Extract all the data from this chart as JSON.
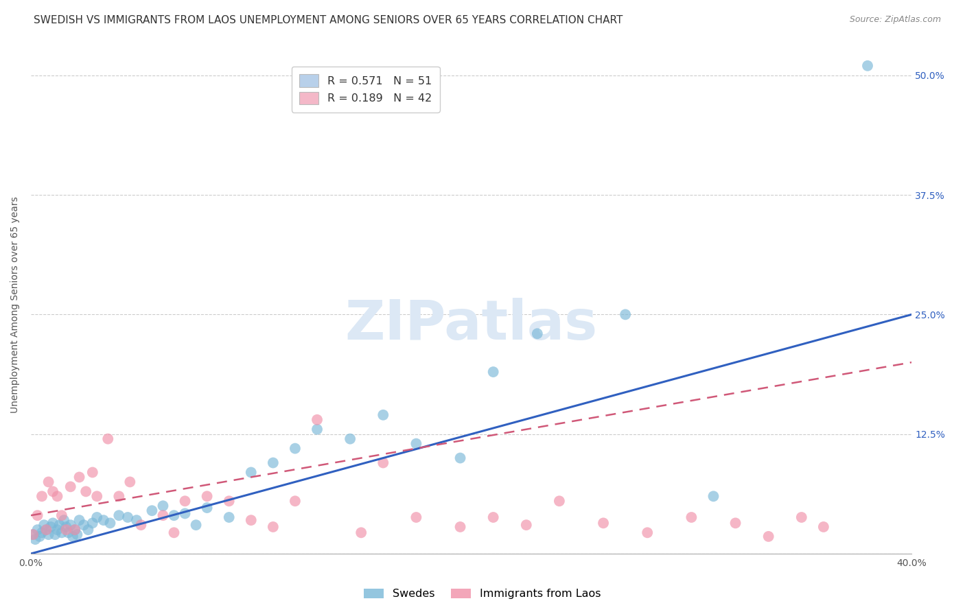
{
  "title": "SWEDISH VS IMMIGRANTS FROM LAOS UNEMPLOYMENT AMONG SENIORS OVER 65 YEARS CORRELATION CHART",
  "source": "Source: ZipAtlas.com",
  "ylabel": "Unemployment Among Seniors over 65 years",
  "xlim": [
    0.0,
    0.42
  ],
  "ylim": [
    -0.01,
    0.56
  ],
  "plot_xlim": [
    0.0,
    0.4
  ],
  "plot_ylim": [
    0.0,
    0.52
  ],
  "legend_label1": "R = 0.571   N = 51",
  "legend_label2": "R = 0.189   N = 42",
  "legend_color1": "#b8d0ea",
  "legend_color2": "#f4b8c8",
  "scatter_color1": "#7ab8d8",
  "scatter_color2": "#f090a8",
  "line_color1": "#3060c0",
  "line_color2": "#d05878",
  "watermark": "ZIPatlas",
  "watermark_color": "#dce8f5",
  "background_color": "#ffffff",
  "grid_color": "#cccccc",
  "swedes_label": "Swedes",
  "laos_label": "Immigrants from Laos",
  "swedes_x": [
    0.001,
    0.002,
    0.003,
    0.004,
    0.005,
    0.006,
    0.007,
    0.008,
    0.009,
    0.01,
    0.011,
    0.012,
    0.013,
    0.014,
    0.015,
    0.016,
    0.017,
    0.018,
    0.019,
    0.02,
    0.021,
    0.022,
    0.024,
    0.026,
    0.028,
    0.03,
    0.033,
    0.036,
    0.04,
    0.044,
    0.048,
    0.055,
    0.06,
    0.065,
    0.07,
    0.075,
    0.08,
    0.09,
    0.1,
    0.11,
    0.12,
    0.13,
    0.145,
    0.16,
    0.175,
    0.195,
    0.21,
    0.23,
    0.27,
    0.31,
    0.38
  ],
  "swedes_y": [
    0.02,
    0.015,
    0.025,
    0.018,
    0.022,
    0.03,
    0.025,
    0.02,
    0.028,
    0.032,
    0.02,
    0.025,
    0.03,
    0.022,
    0.035,
    0.028,
    0.022,
    0.03,
    0.018,
    0.025,
    0.02,
    0.035,
    0.03,
    0.025,
    0.032,
    0.038,
    0.035,
    0.032,
    0.04,
    0.038,
    0.035,
    0.045,
    0.05,
    0.04,
    0.042,
    0.03,
    0.048,
    0.038,
    0.085,
    0.095,
    0.11,
    0.13,
    0.12,
    0.145,
    0.115,
    0.1,
    0.19,
    0.23,
    0.25,
    0.06,
    0.51
  ],
  "laos_x": [
    0.001,
    0.003,
    0.005,
    0.007,
    0.008,
    0.01,
    0.012,
    0.014,
    0.016,
    0.018,
    0.02,
    0.022,
    0.025,
    0.028,
    0.03,
    0.035,
    0.04,
    0.045,
    0.05,
    0.06,
    0.065,
    0.07,
    0.08,
    0.09,
    0.1,
    0.11,
    0.12,
    0.13,
    0.15,
    0.16,
    0.175,
    0.195,
    0.21,
    0.225,
    0.24,
    0.26,
    0.28,
    0.3,
    0.32,
    0.335,
    0.35,
    0.36
  ],
  "laos_y": [
    0.02,
    0.04,
    0.06,
    0.025,
    0.075,
    0.065,
    0.06,
    0.04,
    0.025,
    0.07,
    0.025,
    0.08,
    0.065,
    0.085,
    0.06,
    0.12,
    0.06,
    0.075,
    0.03,
    0.04,
    0.022,
    0.055,
    0.06,
    0.055,
    0.035,
    0.028,
    0.055,
    0.14,
    0.022,
    0.095,
    0.038,
    0.028,
    0.038,
    0.03,
    0.055,
    0.032,
    0.022,
    0.038,
    0.032,
    0.018,
    0.038,
    0.028
  ],
  "title_fontsize": 11,
  "axis_fontsize": 10,
  "tick_fontsize": 10,
  "right_tick_color": "#3060c0"
}
